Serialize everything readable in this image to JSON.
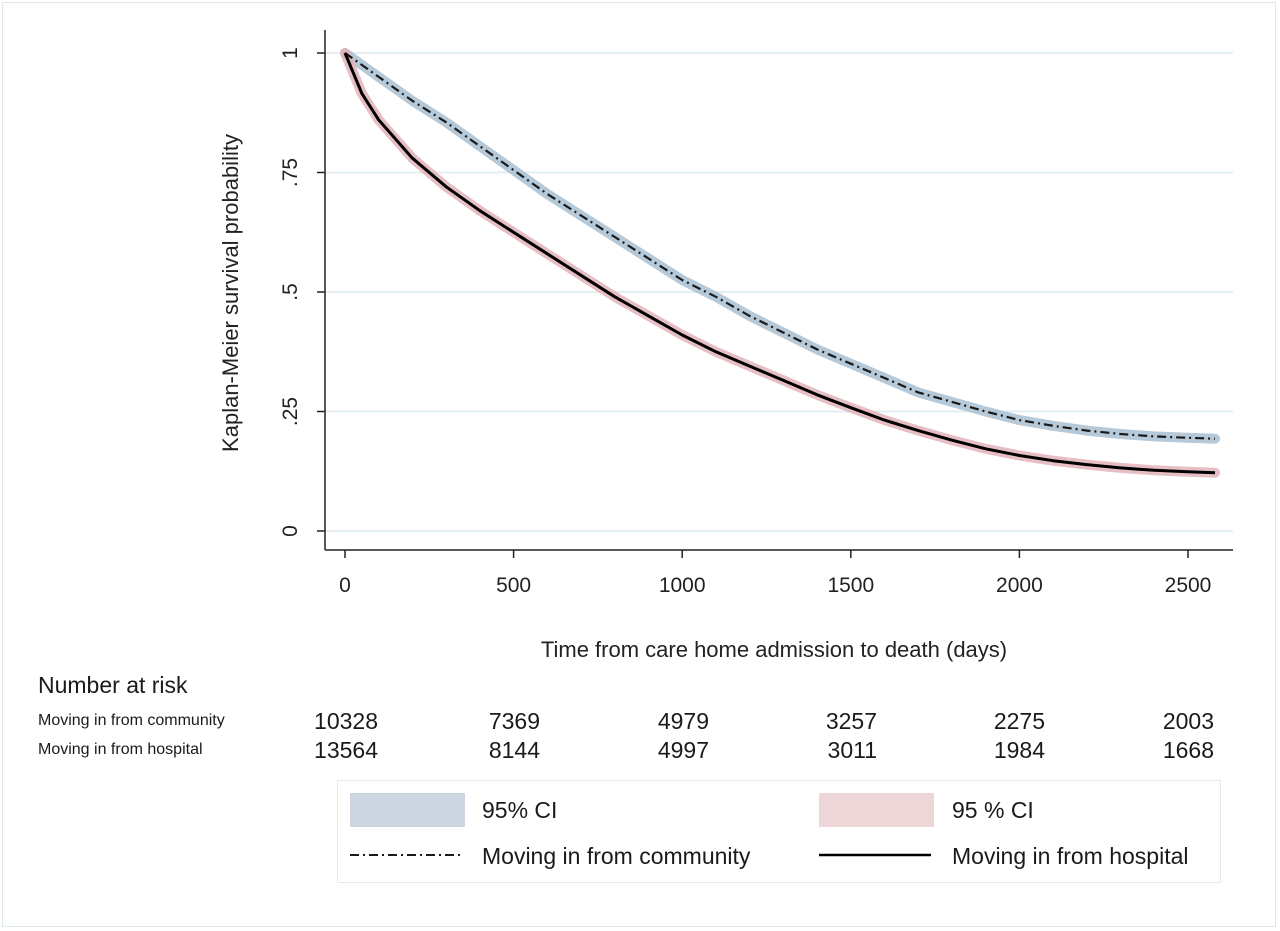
{
  "chart_data": {
    "type": "line",
    "title": "",
    "xlabel": "Time from care home admission to death (days)",
    "ylabel": "Kaplan-Meier survival probability",
    "xlim": [
      0,
      2580
    ],
    "ylim": [
      0,
      1
    ],
    "xticks": [
      0,
      500,
      1000,
      1500,
      2000,
      2500
    ],
    "xtick_labels": [
      "0",
      "500",
      "1000",
      "1500",
      "2000",
      "2500"
    ],
    "yticks": [
      0,
      0.25,
      0.5,
      0.75,
      1
    ],
    "ytick_labels": [
      "0",
      ".25",
      ".5",
      ".75",
      "1"
    ],
    "grid": true,
    "series": [
      {
        "name": "Moving in from community",
        "style": "dash-dot",
        "color": "#1a1a1a",
        "ci_color": "#a9bfd1",
        "x": [
          0,
          100,
          200,
          300,
          400,
          500,
          600,
          700,
          800,
          900,
          1000,
          1100,
          1200,
          1300,
          1400,
          1500,
          1600,
          1700,
          1800,
          1900,
          2000,
          2100,
          2200,
          2300,
          2400,
          2500,
          2580
        ],
        "y": [
          1.0,
          0.95,
          0.9,
          0.855,
          0.805,
          0.755,
          0.705,
          0.66,
          0.615,
          0.57,
          0.525,
          0.49,
          0.45,
          0.415,
          0.38,
          0.35,
          0.32,
          0.29,
          0.27,
          0.25,
          0.232,
          0.22,
          0.21,
          0.203,
          0.198,
          0.195,
          0.193
        ]
      },
      {
        "name": "Moving in from hospital",
        "style": "solid",
        "color": "#000000",
        "ci_color": "#e3b3b8",
        "x": [
          0,
          50,
          100,
          200,
          300,
          400,
          500,
          600,
          700,
          800,
          900,
          1000,
          1100,
          1200,
          1300,
          1400,
          1500,
          1600,
          1700,
          1800,
          1900,
          2000,
          2100,
          2200,
          2300,
          2400,
          2500,
          2580
        ],
        "y": [
          1.0,
          0.915,
          0.86,
          0.78,
          0.72,
          0.67,
          0.625,
          0.58,
          0.535,
          0.49,
          0.45,
          0.41,
          0.375,
          0.345,
          0.315,
          0.285,
          0.258,
          0.232,
          0.21,
          0.19,
          0.172,
          0.158,
          0.147,
          0.139,
          0.132,
          0.127,
          0.124,
          0.122
        ]
      }
    ],
    "legend": {
      "position": "bottom",
      "entries": [
        "95% CI",
        "95 % CI",
        "Moving in from community",
        "Moving in from hospital"
      ]
    }
  },
  "risk_table": {
    "title": "Number at risk",
    "rows": [
      {
        "label": "Moving in from community",
        "values": [
          "10328",
          "7369",
          "4979",
          "3257",
          "2275",
          "2003"
        ]
      },
      {
        "label": "Moving in from hospital",
        "values": [
          "13564",
          "8144",
          "4997",
          "3011",
          "1984",
          "1668"
        ]
      }
    ]
  },
  "legend": {
    "ci_community": "95% CI",
    "ci_hospital": "95 % CI",
    "community": "Moving in from community",
    "hospital": "Moving in from hospital"
  },
  "colors": {
    "ci_community": "#ccd6e1",
    "ci_hospital": "#ecd6d8",
    "grid": "#e3eff2"
  }
}
